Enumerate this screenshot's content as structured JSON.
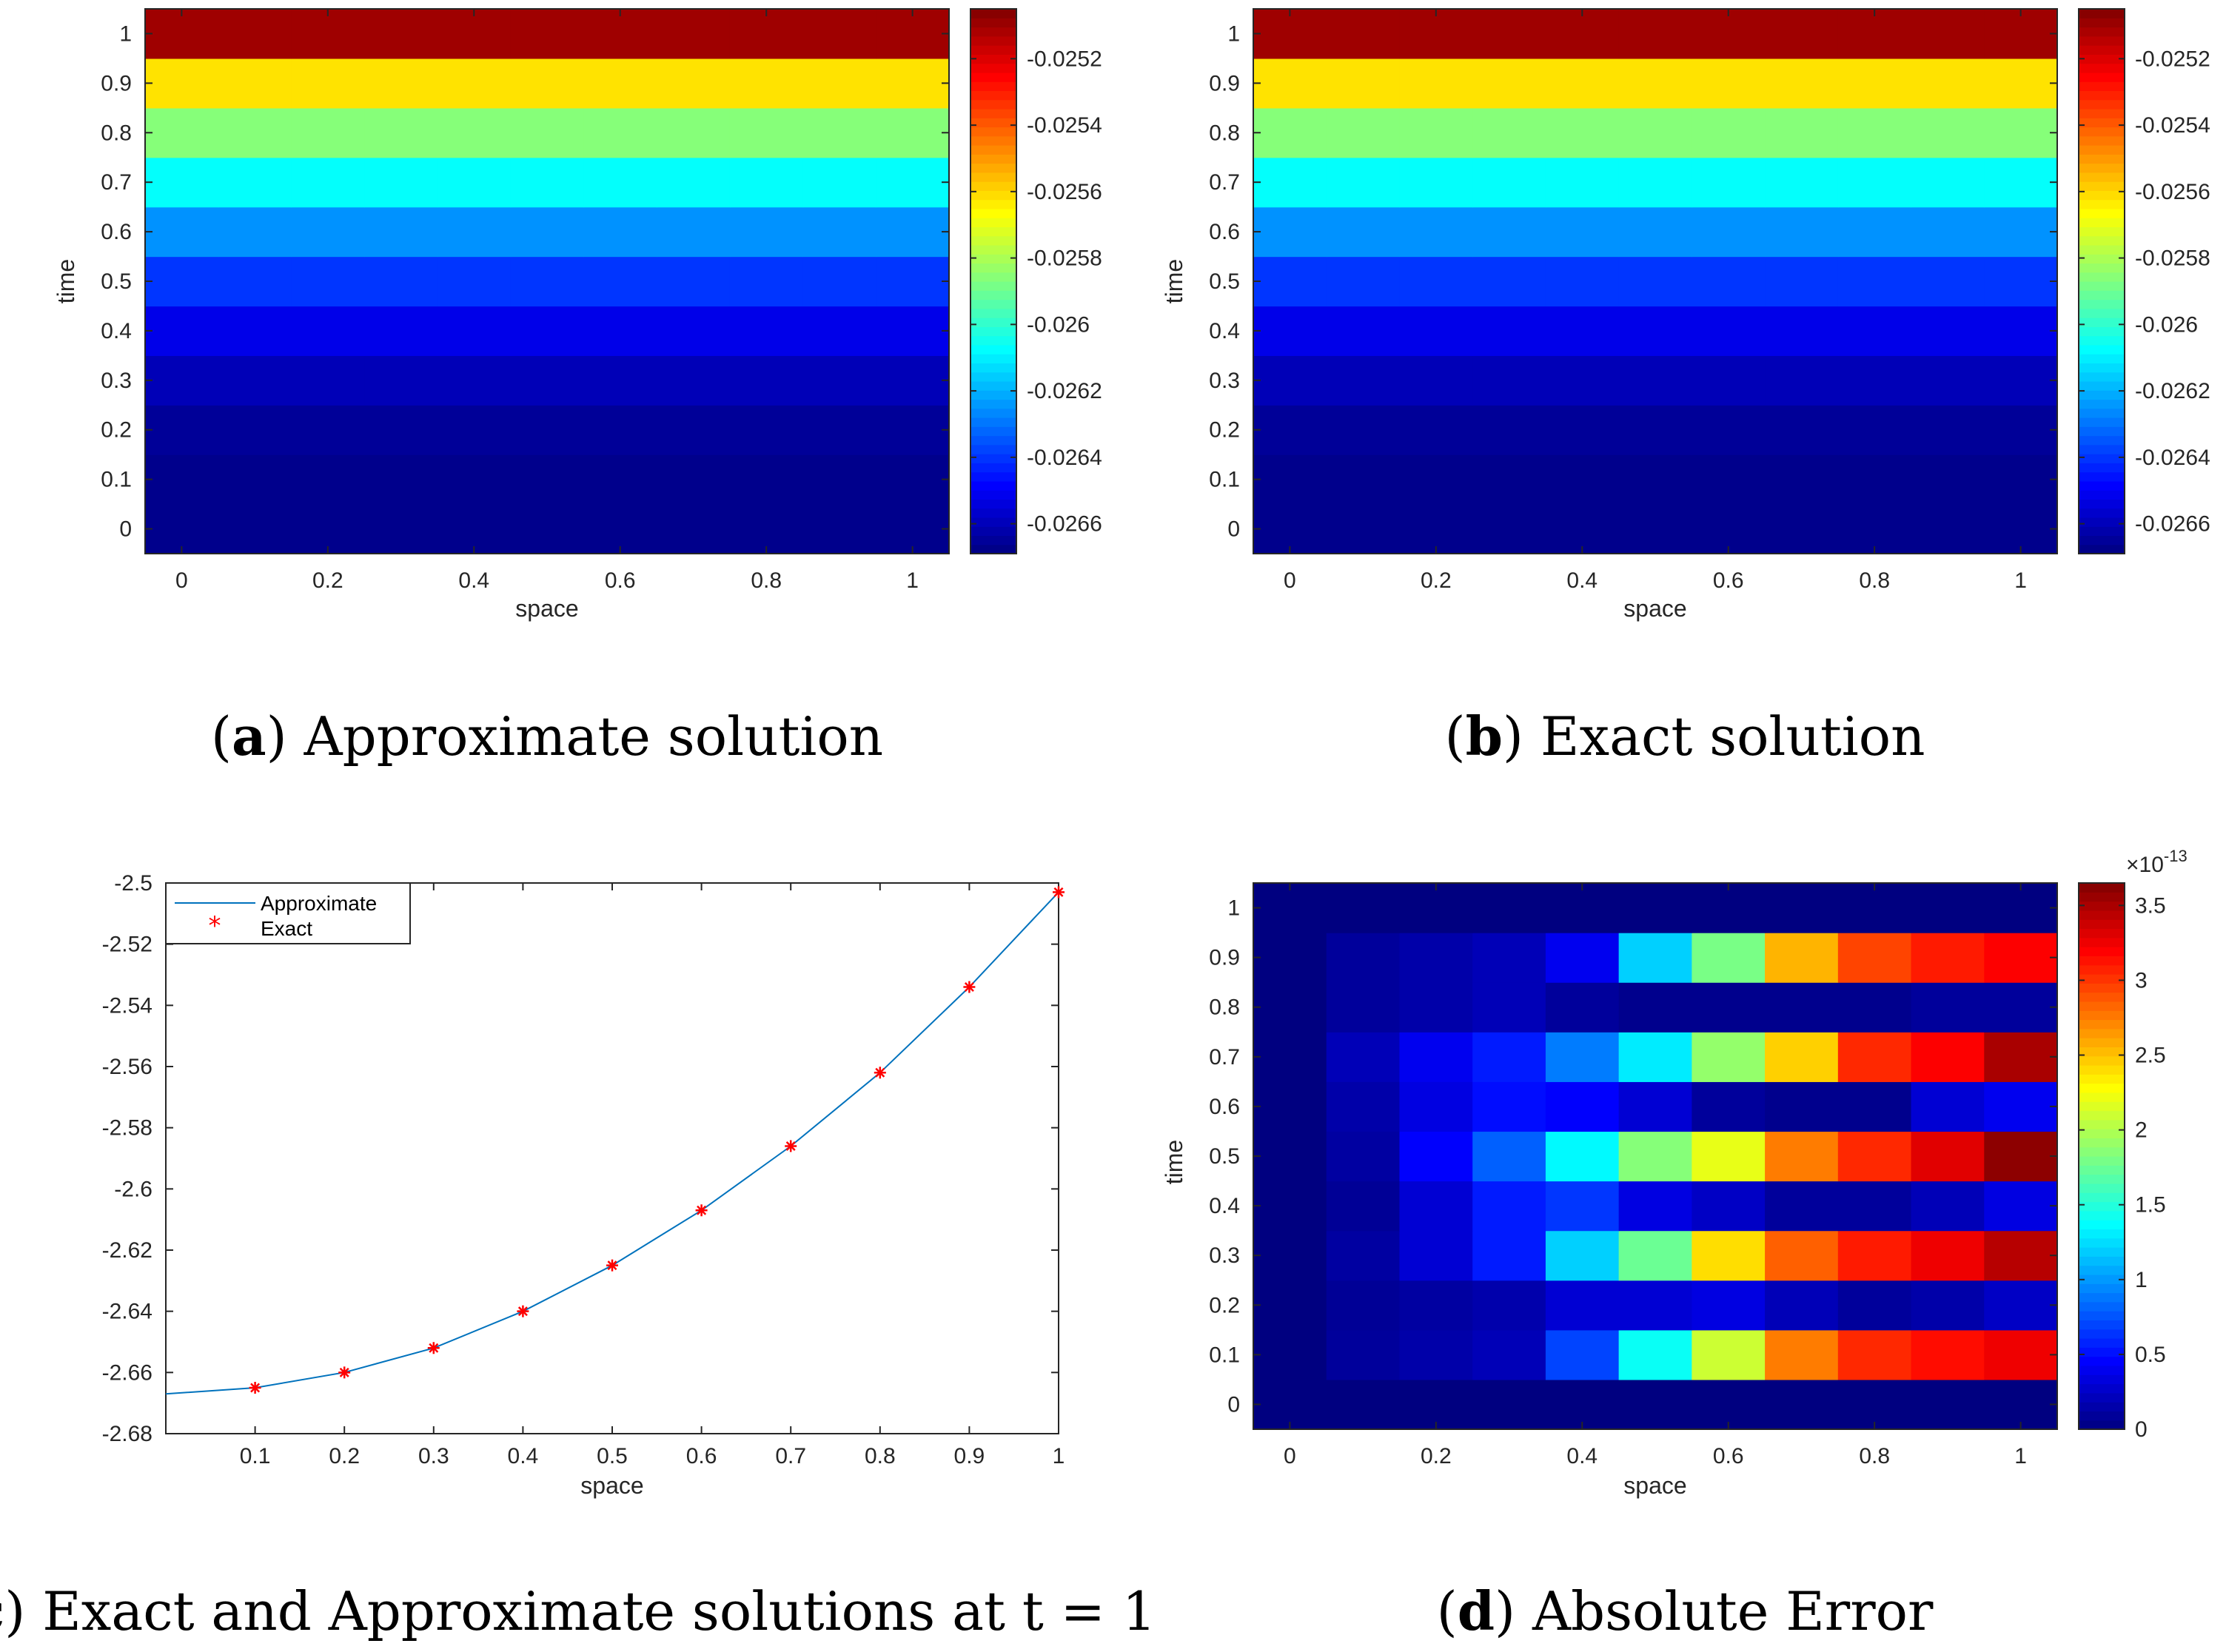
{
  "figure": {
    "captions": [
      {
        "letter": "a",
        "text": ") Approximate solution"
      },
      {
        "letter": "b",
        "text": ") Exact solution"
      },
      {
        "letter": "c",
        "text": ") Exact and Approximate solutions at t = 1"
      },
      {
        "letter": "d",
        "text": ") Absolute Error"
      }
    ]
  },
  "chart_data": [
    {
      "id": "a",
      "type": "heatmap",
      "title": "Approximate solution",
      "xlabel": "space",
      "ylabel": "time",
      "x": [
        0,
        0.1,
        0.2,
        0.3,
        0.4,
        0.5,
        0.6,
        0.7,
        0.8,
        0.9,
        1
      ],
      "y": [
        0,
        0.1,
        0.2,
        0.3,
        0.4,
        0.5,
        0.6,
        0.7,
        0.8,
        0.9,
        1
      ],
      "xticks": [
        "0",
        "0.2",
        "0.4",
        "0.6",
        "0.8",
        "1"
      ],
      "yticks": [
        "0",
        "0.1",
        "0.2",
        "0.3",
        "0.4",
        "0.5",
        "0.6",
        "0.7",
        "0.8",
        "0.9",
        "1"
      ],
      "row_values": [
        -0.02667,
        -0.02667,
        -0.02665,
        -0.0266,
        -0.02652,
        -0.0264,
        -0.02625,
        -0.02607,
        -0.02586,
        -0.02562,
        -0.0251
      ],
      "colorbar": {
        "min": -0.02669,
        "max": -0.02505,
        "ticks": [
          "-0.0252",
          "-0.0254",
          "-0.0256",
          "-0.0258",
          "-0.026",
          "-0.0262",
          "-0.0264",
          "-0.0266"
        ],
        "tick_values": [
          -0.0252,
          -0.0254,
          -0.0256,
          -0.0258,
          -0.026,
          -0.0262,
          -0.0264,
          -0.0266
        ]
      },
      "colormap": "jet"
    },
    {
      "id": "b",
      "type": "heatmap",
      "title": "Exact solution",
      "xlabel": "space",
      "ylabel": "time",
      "x": [
        0,
        0.1,
        0.2,
        0.3,
        0.4,
        0.5,
        0.6,
        0.7,
        0.8,
        0.9,
        1
      ],
      "y": [
        0,
        0.1,
        0.2,
        0.3,
        0.4,
        0.5,
        0.6,
        0.7,
        0.8,
        0.9,
        1
      ],
      "xticks": [
        "0",
        "0.2",
        "0.4",
        "0.6",
        "0.8",
        "1"
      ],
      "yticks": [
        "0",
        "0.1",
        "0.2",
        "0.3",
        "0.4",
        "0.5",
        "0.6",
        "0.7",
        "0.8",
        "0.9",
        "1"
      ],
      "row_values": [
        -0.02667,
        -0.02667,
        -0.02665,
        -0.0266,
        -0.02652,
        -0.0264,
        -0.02625,
        -0.02607,
        -0.02586,
        -0.02562,
        -0.0251
      ],
      "colorbar": {
        "min": -0.02669,
        "max": -0.02505,
        "ticks": [
          "-0.0252",
          "-0.0254",
          "-0.0256",
          "-0.0258",
          "-0.026",
          "-0.0262",
          "-0.0264",
          "-0.0266"
        ],
        "tick_values": [
          -0.0252,
          -0.0254,
          -0.0256,
          -0.0258,
          -0.026,
          -0.0262,
          -0.0264,
          -0.0266
        ]
      },
      "colormap": "jet"
    },
    {
      "id": "c",
      "type": "line",
      "title": "Exact and Approximate solutions at t = 1",
      "xlabel": "space",
      "ylabel": "",
      "xlim": [
        0,
        1
      ],
      "ylim": [
        -2.68,
        -2.5
      ],
      "xticks": [
        "0.1",
        "0.2",
        "0.3",
        "0.4",
        "0.5",
        "0.6",
        "0.7",
        "0.8",
        "0.9",
        "1"
      ],
      "xtick_values": [
        0.1,
        0.2,
        0.3,
        0.4,
        0.5,
        0.6,
        0.7,
        0.8,
        0.9,
        1
      ],
      "yticks": [
        "-2.5",
        "-2.52",
        "-2.54",
        "-2.56",
        "-2.58",
        "-2.6",
        "-2.62",
        "-2.64",
        "-2.66",
        "-2.68"
      ],
      "ytick_values": [
        -2.5,
        -2.52,
        -2.54,
        -2.56,
        -2.58,
        -2.6,
        -2.62,
        -2.64,
        -2.66,
        -2.68
      ],
      "legend": {
        "entries": [
          "Approximate",
          "Exact"
        ],
        "location": "top-left"
      },
      "series": [
        {
          "name": "Approximate",
          "style": "line",
          "color": "#0072bd",
          "x": [
            0,
            0.1,
            0.2,
            0.3,
            0.4,
            0.5,
            0.6,
            0.7,
            0.8,
            0.9,
            1
          ],
          "y": [
            -2.667,
            -2.665,
            -2.66,
            -2.652,
            -2.64,
            -2.625,
            -2.607,
            -2.586,
            -2.562,
            -2.534,
            -2.503
          ]
        },
        {
          "name": "Exact",
          "style": "marker",
          "marker": "*",
          "color": "#ff0000",
          "x": [
            0.1,
            0.2,
            0.3,
            0.4,
            0.5,
            0.6,
            0.7,
            0.8,
            0.9,
            1
          ],
          "y": [
            -2.665,
            -2.66,
            -2.652,
            -2.64,
            -2.625,
            -2.607,
            -2.586,
            -2.562,
            -2.534,
            -2.503
          ]
        }
      ]
    },
    {
      "id": "d",
      "type": "heatmap",
      "title": "Absolute Error",
      "xlabel": "space",
      "ylabel": "time",
      "x": [
        0,
        0.1,
        0.2,
        0.3,
        0.4,
        0.5,
        0.6,
        0.7,
        0.8,
        0.9,
        1
      ],
      "y": [
        0,
        0.1,
        0.2,
        0.3,
        0.4,
        0.5,
        0.6,
        0.7,
        0.8,
        0.9,
        1
      ],
      "xticks": [
        "0",
        "0.2",
        "0.4",
        "0.6",
        "0.8",
        "1"
      ],
      "yticks": [
        "0",
        "0.1",
        "0.2",
        "0.3",
        "0.4",
        "0.5",
        "0.6",
        "0.7",
        "0.8",
        "0.9",
        "1"
      ],
      "z_scale_label": "×10",
      "z_scale_exponent": "-13",
      "z": [
        [
          0,
          0,
          0,
          0,
          0,
          0,
          0,
          0,
          0,
          0,
          0
        ],
        [
          0,
          0.1,
          0.15,
          0.2,
          0.7,
          1.4,
          2.1,
          2.75,
          3.05,
          3.15,
          3.25
        ],
        [
          0,
          0.08,
          0.12,
          0.16,
          0.3,
          0.3,
          0.35,
          0.2,
          0.1,
          0.15,
          0.25
        ],
        [
          0,
          0.12,
          0.3,
          0.55,
          1.2,
          1.75,
          2.4,
          2.85,
          3.1,
          3.25,
          3.45
        ],
        [
          0,
          0.08,
          0.3,
          0.55,
          0.65,
          0.35,
          0.25,
          0.1,
          0.1,
          0.2,
          0.35
        ],
        [
          0,
          0.12,
          0.45,
          0.8,
          1.35,
          1.85,
          2.2,
          2.75,
          3.05,
          3.3,
          3.6
        ],
        [
          0,
          0.15,
          0.35,
          0.5,
          0.45,
          0.3,
          0.1,
          0.05,
          0.05,
          0.3,
          0.4
        ],
        [
          0,
          0.2,
          0.4,
          0.55,
          0.9,
          1.3,
          1.9,
          2.45,
          3.05,
          3.2,
          3.5
        ],
        [
          0,
          0.1,
          0.15,
          0.2,
          0.1,
          0.05,
          0.05,
          0.05,
          0.05,
          0.1,
          0.1
        ],
        [
          0,
          0.1,
          0.15,
          0.2,
          0.4,
          1.2,
          1.8,
          2.55,
          2.95,
          3.1,
          3.2
        ],
        [
          0,
          0,
          0,
          0,
          0,
          0,
          0,
          0,
          0,
          0,
          0
        ]
      ],
      "colorbar": {
        "min": 0,
        "max": 3.65,
        "ticks": [
          "0",
          "0.5",
          "1",
          "1.5",
          "2",
          "2.5",
          "3",
          "3.5"
        ],
        "tick_values": [
          0,
          0.5,
          1,
          1.5,
          2,
          2.5,
          3,
          3.5
        ]
      },
      "colormap": "jet"
    }
  ]
}
